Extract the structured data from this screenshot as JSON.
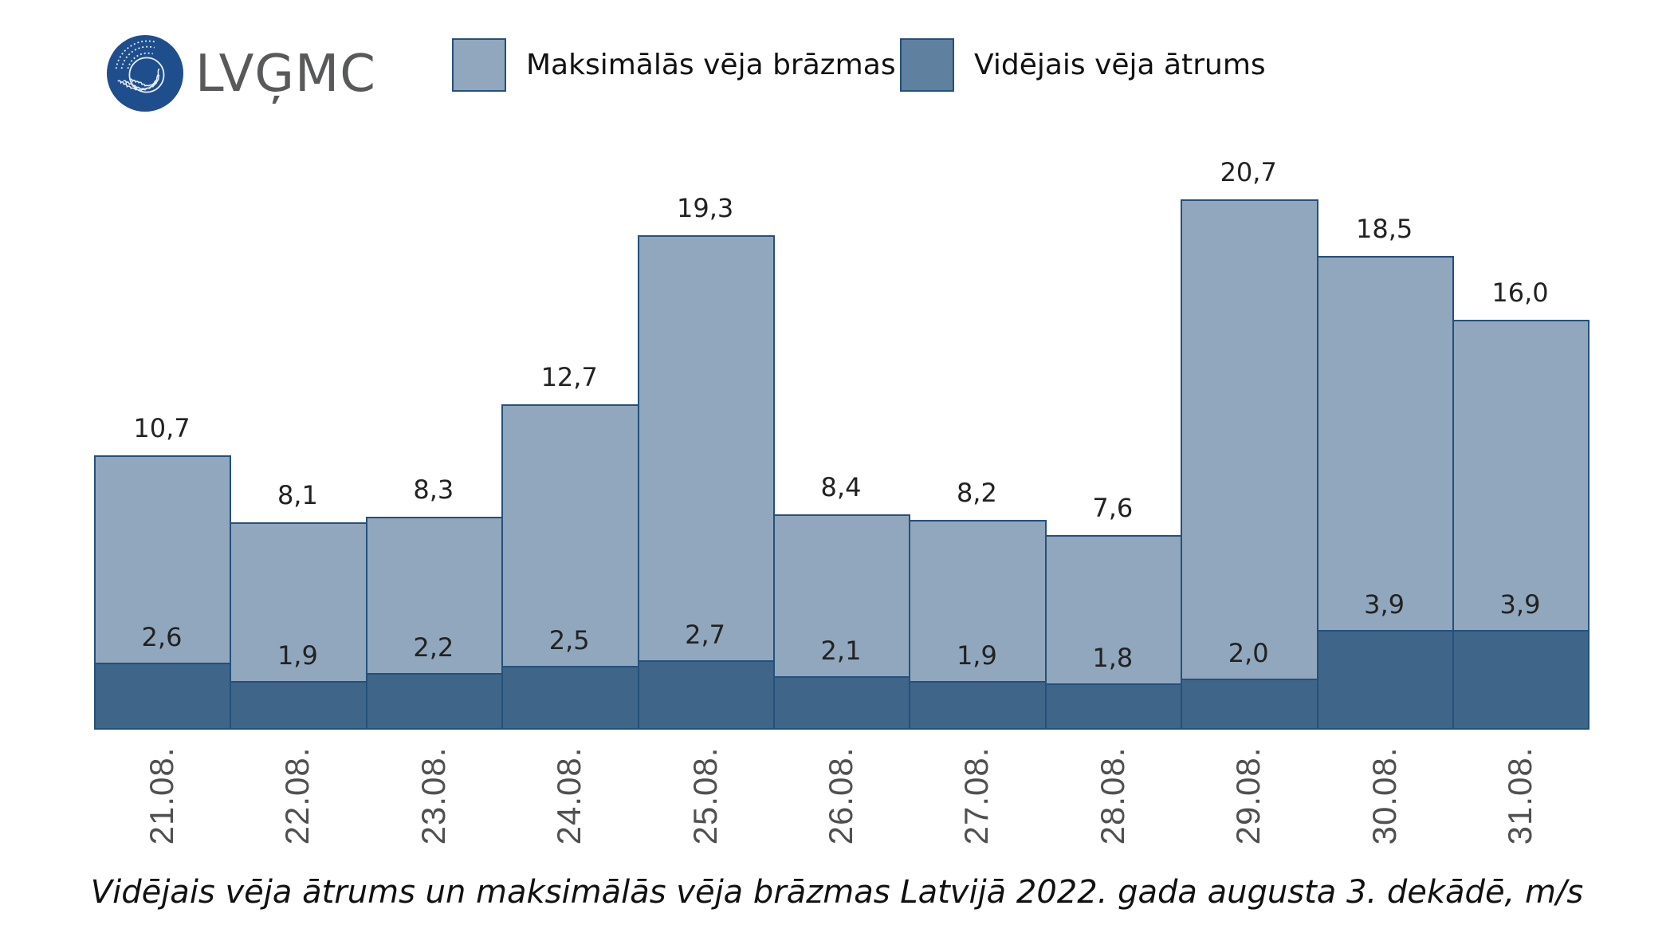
{
  "logo": {
    "text": "LVĢMC",
    "circle_color": "#1f4e8c",
    "text_color": "#58595b"
  },
  "legend": [
    {
      "label": "Maksimālās vēja brāzmas",
      "color": "#91a7bd"
    },
    {
      "label": "Vidējais vēja ātrums",
      "color": "#5f809f"
    }
  ],
  "colors": {
    "max_bar": "#91a7bd",
    "avg_bar": "#3f6689",
    "border": "#24507c"
  },
  "chart_data": {
    "type": "bar",
    "title": "Vidējais vēja ātrums un maksimālās vēja brāzmas Latvijā 2022. gada augusta 3. dekādē, m/s",
    "xlabel": "",
    "ylabel": "m/s",
    "categories": [
      "21.08.",
      "22.08.",
      "23.08.",
      "24.08.",
      "25.08.",
      "26.08.",
      "27.08.",
      "28.08.",
      "29.08.",
      "30.08.",
      "31.08."
    ],
    "series": [
      {
        "name": "Maksimālās vēja brāzmas",
        "values": [
          10.7,
          8.1,
          8.3,
          12.7,
          19.3,
          8.4,
          8.2,
          7.6,
          20.7,
          18.5,
          16.0
        ],
        "labels": [
          "10,7",
          "8,1",
          "8,3",
          "12,7",
          "19,3",
          "8,4",
          "8,2",
          "7,6",
          "20,7",
          "18,5",
          "16,0"
        ]
      },
      {
        "name": "Vidējais vēja ātrums",
        "values": [
          2.6,
          1.9,
          2.2,
          2.5,
          2.7,
          2.1,
          1.9,
          1.8,
          2.0,
          3.9,
          3.9
        ],
        "labels": [
          "2,6",
          "1,9",
          "2,2",
          "2,5",
          "2,7",
          "2,1",
          "1,9",
          "1,8",
          "2,0",
          "3,9",
          "3,9"
        ]
      }
    ],
    "ylim": [
      0,
      22
    ],
    "grid": false,
    "legend_position": "top",
    "bar_mode": "overlay"
  }
}
